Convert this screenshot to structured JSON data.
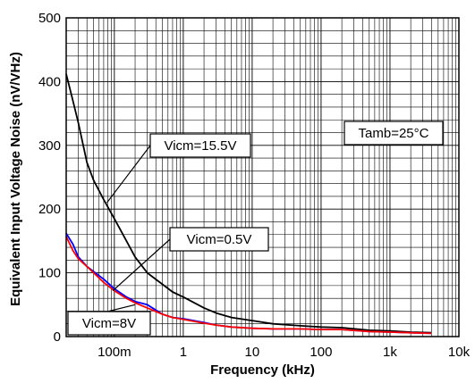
{
  "chart_data": {
    "type": "line",
    "title": "",
    "xlabel": "Frequency (kHz)",
    "ylabel": "Equivalent Input Voltage Noise (nV/VHz)",
    "x_scale": "log",
    "xlim": [
      0.02,
      10000
    ],
    "ylim": [
      0,
      500
    ],
    "grid": true,
    "x_ticks": [
      {
        "value": 0.1,
        "label": "100m"
      },
      {
        "value": 1,
        "label": "1"
      },
      {
        "value": 10,
        "label": "10"
      },
      {
        "value": 100,
        "label": "100"
      },
      {
        "value": 1000,
        "label": "1k"
      },
      {
        "value": 10000,
        "label": "10k"
      }
    ],
    "y_ticks": [
      0,
      100,
      200,
      300,
      400,
      500
    ],
    "series": [
      {
        "name": "Vicm=15.5V",
        "color": "#000000",
        "x": [
          0.02,
          0.025,
          0.03,
          0.04,
          0.05,
          0.07,
          0.1,
          0.15,
          0.2,
          0.3,
          0.5,
          0.7,
          1,
          2,
          3,
          5,
          10,
          20,
          50,
          100,
          200,
          500,
          1000,
          2000,
          4000
        ],
        "y": [
          412,
          370,
          335,
          273,
          245,
          215,
          185,
          150,
          125,
          100,
          82,
          70,
          62,
          45,
          37,
          30,
          25,
          20,
          17,
          15,
          14,
          10,
          9,
          7,
          6
        ]
      },
      {
        "name": "Vicm=0.5V",
        "color": "#0000ff",
        "x": [
          0.02,
          0.025,
          0.03,
          0.04,
          0.05,
          0.07,
          0.1,
          0.15,
          0.2,
          0.3,
          0.5,
          0.7,
          1,
          2,
          3,
          5,
          10,
          20,
          50,
          100,
          200,
          500,
          1000,
          2000,
          4000
        ],
        "y": [
          162,
          145,
          125,
          110,
          102,
          90,
          75,
          62,
          55,
          50,
          35,
          30,
          28,
          22,
          18,
          15,
          13,
          12,
          12,
          11,
          11,
          8,
          7,
          6,
          5
        ]
      },
      {
        "name": "Vicm=8V",
        "color": "#ff0000",
        "x": [
          0.02,
          0.025,
          0.03,
          0.04,
          0.05,
          0.07,
          0.1,
          0.15,
          0.2,
          0.3,
          0.5,
          0.7,
          1,
          2,
          3,
          5,
          10,
          20,
          50,
          100,
          200,
          500,
          1000,
          2000,
          4000
        ],
        "y": [
          157,
          135,
          122,
          110,
          100,
          85,
          72,
          60,
          53,
          45,
          35,
          30,
          27,
          21,
          18,
          15,
          13,
          12,
          12,
          11,
          11,
          8,
          7,
          6,
          5
        ]
      }
    ],
    "annotations": [
      {
        "text": "Tamb=25°C"
      },
      {
        "text": "Vicm=15.5V",
        "series": "Vicm=15.5V",
        "point": [
          0.078,
          210
        ]
      },
      {
        "text": "Vicm=0.5V",
        "series": "Vicm=0.5V",
        "point": [
          0.095,
          72
        ]
      },
      {
        "text": "Vicm=8V",
        "series": "Vicm=8V",
        "point": [
          0.2,
          50
        ]
      }
    ]
  }
}
